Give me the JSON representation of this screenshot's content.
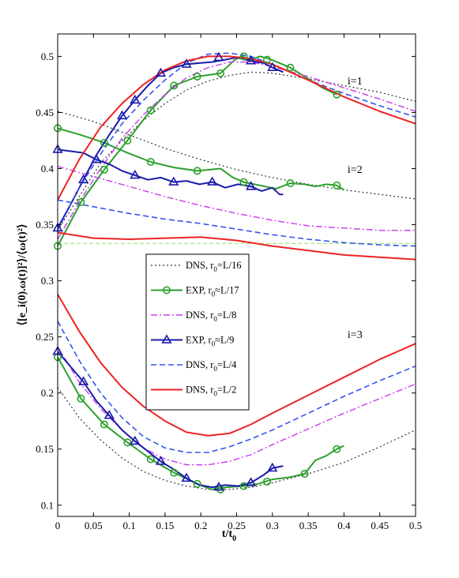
{
  "chart_data": {
    "type": "line",
    "title": "",
    "xlabel": "t/t_0",
    "xlabel_main": "t/t",
    "xlabel_sub": "0",
    "ylabel": "⟨[e_i(0).ω(t)]²⟩/⟨ω(t)²⟩",
    "xlim": [
      0,
      0.5
    ],
    "ylim": [
      0.09,
      0.52
    ],
    "x_ticks": [
      0,
      0.05,
      0.1,
      0.15,
      0.2,
      0.25,
      0.3,
      0.35,
      0.4,
      0.45,
      0.5
    ],
    "x_tick_labels": [
      "0",
      "0.05",
      "0.1",
      "0.15",
      "0.2",
      "0.25",
      "0.3",
      "0.35",
      "0.4",
      "0.45",
      "0.5"
    ],
    "y_ticks": [
      0.1,
      0.15,
      0.2,
      0.25,
      0.3,
      0.35,
      0.4,
      0.45,
      0.5
    ],
    "y_tick_labels": [
      "0.1",
      "0.15",
      "0.2",
      "0.25",
      "0.3",
      "0.35",
      "0.4",
      "0.45",
      "0.5"
    ],
    "grid": false,
    "legend_position": "center-left",
    "reference_line": {
      "y": 0.3333,
      "color": "#99dd66"
    },
    "annotations": [
      {
        "text": "i=1",
        "x": 0.405,
        "y": 0.475
      },
      {
        "text": "i=2",
        "x": 0.405,
        "y": 0.396
      },
      {
        "text": "i=3",
        "x": 0.405,
        "y": 0.249
      }
    ],
    "legend": [
      {
        "label_pre": "DNS, r",
        "label_sub": "0",
        "label_post": "=L/16",
        "color": "#333333",
        "dash": "2,3",
        "width": 1.2,
        "marker": "none"
      },
      {
        "label_pre": "EXP, r",
        "label_sub": "0",
        "label_post": "≈L/17",
        "color": "#2ca02c",
        "dash": "",
        "width": 2,
        "marker": "circle"
      },
      {
        "label_pre": "DNS, r",
        "label_sub": "0",
        "label_post": "=L/8",
        "color": "#cc44ee",
        "dash": "8,3,2,3",
        "width": 1.5,
        "marker": "none"
      },
      {
        "label_pre": "EXP, r",
        "label_sub": "0",
        "label_post": "≈L/9",
        "color": "#1a1aaa",
        "dash": "",
        "width": 2,
        "marker": "triangle"
      },
      {
        "label_pre": "DNS, r",
        "label_sub": "0",
        "label_post": "=L/4",
        "color": "#3355ee",
        "dash": "7,4",
        "width": 1.6,
        "marker": "none"
      },
      {
        "label_pre": "DNS, r",
        "label_sub": "0",
        "label_post": "=L/2",
        "color": "#ee2222",
        "dash": "",
        "width": 2,
        "marker": "none"
      }
    ],
    "series": [
      {
        "name": "DNS, r0=L/16",
        "component": "i=1",
        "color": "#333333",
        "dash": "2,3",
        "width": 1.2,
        "marker": "none",
        "x": [
          0,
          0.03,
          0.06,
          0.09,
          0.12,
          0.15,
          0.18,
          0.21,
          0.24,
          0.27,
          0.3,
          0.35,
          0.4,
          0.45,
          0.5
        ],
        "y": [
          0.345,
          0.375,
          0.405,
          0.425,
          0.443,
          0.458,
          0.47,
          0.478,
          0.483,
          0.486,
          0.485,
          0.48,
          0.474,
          0.468,
          0.46
        ]
      },
      {
        "name": "DNS, r0=L/16",
        "component": "i=2",
        "color": "#333333",
        "dash": "2,3",
        "width": 1.2,
        "marker": "none",
        "x": [
          0,
          0.05,
          0.1,
          0.15,
          0.2,
          0.25,
          0.3,
          0.35,
          0.4,
          0.45,
          0.5
        ],
        "y": [
          0.451,
          0.442,
          0.43,
          0.418,
          0.408,
          0.399,
          0.392,
          0.386,
          0.381,
          0.377,
          0.373
        ]
      },
      {
        "name": "DNS, r0=L/16",
        "component": "i=3",
        "color": "#333333",
        "dash": "2,3",
        "width": 1.2,
        "marker": "none",
        "x": [
          0,
          0.03,
          0.06,
          0.09,
          0.12,
          0.15,
          0.18,
          0.21,
          0.24,
          0.27,
          0.3,
          0.35,
          0.4,
          0.45,
          0.5
        ],
        "y": [
          0.205,
          0.178,
          0.158,
          0.142,
          0.13,
          0.122,
          0.117,
          0.114,
          0.114,
          0.116,
          0.12,
          0.128,
          0.138,
          0.152,
          0.167
        ]
      },
      {
        "name": "EXP, r0≈L/17",
        "component": "i=1",
        "color": "#2ca02c",
        "dash": "",
        "width": 2,
        "marker": "circle",
        "x": [
          0,
          0.0325,
          0.065,
          0.0975,
          0.13,
          0.1625,
          0.195,
          0.2275,
          0.2475,
          0.2575,
          0.27,
          0.2825,
          0.295,
          0.31,
          0.325,
          0.35,
          0.37,
          0.39
        ],
        "y": [
          0.331,
          0.37,
          0.399,
          0.425,
          0.452,
          0.474,
          0.482,
          0.485,
          0.497,
          0.5,
          0.497,
          0.5,
          0.498,
          0.494,
          0.49,
          0.48,
          0.472,
          0.466
        ],
        "marker_x": [
          0,
          0.0325,
          0.065,
          0.0975,
          0.13,
          0.1625,
          0.195,
          0.2275,
          0.26,
          0.2925,
          0.325,
          0.39
        ],
        "marker_y": [
          0.331,
          0.37,
          0.399,
          0.425,
          0.452,
          0.474,
          0.482,
          0.485,
          0.5,
          0.497,
          0.49,
          0.466
        ]
      },
      {
        "name": "EXP, r0≈L/17",
        "component": "i=2",
        "color": "#2ca02c",
        "dash": "",
        "width": 2,
        "marker": "circle",
        "x": [
          0,
          0.0325,
          0.065,
          0.0975,
          0.13,
          0.1625,
          0.195,
          0.2275,
          0.245,
          0.26,
          0.275,
          0.29,
          0.305,
          0.325,
          0.345,
          0.36,
          0.375,
          0.39,
          0.4
        ],
        "y": [
          0.436,
          0.43,
          0.423,
          0.414,
          0.406,
          0.401,
          0.398,
          0.4,
          0.392,
          0.388,
          0.386,
          0.384,
          0.382,
          0.387,
          0.386,
          0.384,
          0.386,
          0.385,
          0.381
        ],
        "marker_x": [
          0,
          0.065,
          0.13,
          0.195,
          0.26,
          0.325,
          0.39
        ],
        "marker_y": [
          0.436,
          0.423,
          0.406,
          0.398,
          0.388,
          0.387,
          0.385
        ]
      },
      {
        "name": "EXP, r0≈L/17",
        "component": "i=3",
        "color": "#2ca02c",
        "dash": "",
        "width": 2,
        "marker": "circle",
        "x": [
          0,
          0.0325,
          0.065,
          0.0975,
          0.13,
          0.1625,
          0.195,
          0.215,
          0.235,
          0.26,
          0.28,
          0.3,
          0.325,
          0.345,
          0.36,
          0.375,
          0.39,
          0.4
        ],
        "y": [
          0.232,
          0.195,
          0.172,
          0.156,
          0.141,
          0.129,
          0.119,
          0.114,
          0.116,
          0.117,
          0.119,
          0.123,
          0.125,
          0.128,
          0.14,
          0.144,
          0.15,
          0.153
        ],
        "marker_x": [
          0,
          0.0325,
          0.065,
          0.0975,
          0.13,
          0.1625,
          0.195,
          0.2275,
          0.26,
          0.2925,
          0.345,
          0.39
        ],
        "marker_y": [
          0.232,
          0.195,
          0.172,
          0.156,
          0.141,
          0.129,
          0.119,
          0.114,
          0.117,
          0.121,
          0.128,
          0.15
        ]
      },
      {
        "name": "DNS, r0=L/8",
        "component": "i=1",
        "color": "#cc44ee",
        "dash": "8,3,2,3",
        "width": 1.5,
        "marker": "none",
        "x": [
          0,
          0.03,
          0.06,
          0.09,
          0.12,
          0.15,
          0.18,
          0.21,
          0.24,
          0.27,
          0.3,
          0.35,
          0.4,
          0.45,
          0.5
        ],
        "y": [
          0.337,
          0.37,
          0.4,
          0.427,
          0.448,
          0.466,
          0.481,
          0.49,
          0.495,
          0.495,
          0.491,
          0.482,
          0.472,
          0.462,
          0.451
        ]
      },
      {
        "name": "DNS, r0=L/8",
        "component": "i=2",
        "color": "#cc44ee",
        "dash": "8,3,2,3",
        "width": 1.5,
        "marker": "none",
        "x": [
          0,
          0.05,
          0.1,
          0.15,
          0.2,
          0.25,
          0.3,
          0.35,
          0.4,
          0.45,
          0.5
        ],
        "y": [
          0.402,
          0.393,
          0.384,
          0.375,
          0.367,
          0.36,
          0.354,
          0.349,
          0.347,
          0.345,
          0.345
        ]
      },
      {
        "name": "DNS, r0=L/8",
        "component": "i=3",
        "color": "#cc44ee",
        "dash": "8,3,2,3",
        "width": 1.5,
        "marker": "none",
        "x": [
          0,
          0.03,
          0.06,
          0.09,
          0.12,
          0.15,
          0.18,
          0.21,
          0.24,
          0.27,
          0.3,
          0.35,
          0.4,
          0.45,
          0.5
        ],
        "y": [
          0.241,
          0.21,
          0.186,
          0.167,
          0.151,
          0.141,
          0.136,
          0.136,
          0.139,
          0.145,
          0.154,
          0.168,
          0.182,
          0.195,
          0.208
        ]
      },
      {
        "name": "EXP, r0≈L/9",
        "component": "i=1",
        "color": "#1a1aaa",
        "dash": "",
        "width": 2,
        "marker": "triangle",
        "x": [
          0,
          0.018,
          0.036,
          0.054,
          0.072,
          0.09,
          0.108,
          0.126,
          0.144,
          0.162,
          0.18,
          0.198,
          0.216,
          0.234,
          0.25,
          0.27,
          0.288,
          0.3,
          0.315
        ],
        "y": [
          0.347,
          0.368,
          0.39,
          0.412,
          0.43,
          0.447,
          0.461,
          0.474,
          0.485,
          0.49,
          0.493,
          0.494,
          0.495,
          0.497,
          0.499,
          0.496,
          0.494,
          0.49,
          0.486
        ],
        "marker_x": [
          0,
          0.036,
          0.09,
          0.108,
          0.144,
          0.18,
          0.225,
          0.27,
          0.3
        ],
        "marker_y": [
          0.347,
          0.39,
          0.447,
          0.461,
          0.485,
          0.493,
          0.499,
          0.496,
          0.49
        ]
      },
      {
        "name": "EXP, r0≈L/9",
        "component": "i=2",
        "color": "#1a1aaa",
        "dash": "",
        "width": 2,
        "marker": "triangle",
        "x": [
          0,
          0.036,
          0.054,
          0.072,
          0.09,
          0.108,
          0.126,
          0.144,
          0.162,
          0.18,
          0.198,
          0.216,
          0.234,
          0.252,
          0.27,
          0.285,
          0.3,
          0.31,
          0.315
        ],
        "y": [
          0.417,
          0.414,
          0.408,
          0.404,
          0.398,
          0.394,
          0.39,
          0.392,
          0.388,
          0.389,
          0.386,
          0.388,
          0.383,
          0.386,
          0.384,
          0.38,
          0.383,
          0.377,
          0.377
        ],
        "marker_x": [
          0,
          0.054,
          0.108,
          0.162,
          0.216,
          0.27
        ],
        "marker_y": [
          0.417,
          0.408,
          0.394,
          0.388,
          0.388,
          0.384
        ]
      },
      {
        "name": "EXP, r0≈L/9",
        "component": "i=3",
        "color": "#1a1aaa",
        "dash": "",
        "width": 2,
        "marker": "triangle",
        "x": [
          0,
          0.036,
          0.054,
          0.072,
          0.09,
          0.108,
          0.126,
          0.144,
          0.162,
          0.18,
          0.198,
          0.216,
          0.234,
          0.252,
          0.27,
          0.288,
          0.3,
          0.315
        ],
        "y": [
          0.237,
          0.21,
          0.193,
          0.18,
          0.167,
          0.157,
          0.148,
          0.139,
          0.132,
          0.124,
          0.118,
          0.116,
          0.118,
          0.117,
          0.12,
          0.127,
          0.133,
          0.135
        ],
        "marker_x": [
          0,
          0.036,
          0.072,
          0.108,
          0.144,
          0.18,
          0.225,
          0.27,
          0.3
        ],
        "marker_y": [
          0.237,
          0.21,
          0.18,
          0.157,
          0.139,
          0.124,
          0.116,
          0.12,
          0.133
        ]
      },
      {
        "name": "DNS, r0=L/4",
        "component": "i=1",
        "color": "#3355ee",
        "dash": "7,4",
        "width": 1.6,
        "marker": "none",
        "x": [
          0,
          0.03,
          0.06,
          0.09,
          0.12,
          0.15,
          0.18,
          0.21,
          0.24,
          0.27,
          0.3,
          0.35,
          0.4,
          0.45,
          0.5
        ],
        "y": [
          0.345,
          0.383,
          0.413,
          0.44,
          0.461,
          0.479,
          0.494,
          0.502,
          0.503,
          0.5,
          0.493,
          0.479,
          0.467,
          0.456,
          0.446
        ]
      },
      {
        "name": "DNS, r0=L/4",
        "component": "i=2",
        "color": "#3355ee",
        "dash": "7,4",
        "width": 1.6,
        "marker": "none",
        "x": [
          0,
          0.05,
          0.1,
          0.15,
          0.2,
          0.25,
          0.3,
          0.35,
          0.4,
          0.45,
          0.5
        ],
        "y": [
          0.372,
          0.366,
          0.36,
          0.355,
          0.351,
          0.346,
          0.341,
          0.337,
          0.334,
          0.332,
          0.331
        ]
      },
      {
        "name": "DNS, r0=L/4",
        "component": "i=3",
        "color": "#3355ee",
        "dash": "7,4",
        "width": 1.6,
        "marker": "none",
        "x": [
          0,
          0.03,
          0.06,
          0.09,
          0.12,
          0.15,
          0.18,
          0.21,
          0.24,
          0.27,
          0.3,
          0.35,
          0.4,
          0.45,
          0.5
        ],
        "y": [
          0.264,
          0.229,
          0.2,
          0.178,
          0.161,
          0.151,
          0.147,
          0.147,
          0.152,
          0.159,
          0.167,
          0.182,
          0.197,
          0.211,
          0.224
        ]
      },
      {
        "name": "DNS, r0=L/2",
        "component": "i=1",
        "color": "#ee2222",
        "dash": "",
        "width": 2,
        "marker": "none",
        "x": [
          0,
          0.03,
          0.06,
          0.09,
          0.12,
          0.15,
          0.18,
          0.21,
          0.24,
          0.27,
          0.3,
          0.35,
          0.4,
          0.45,
          0.5
        ],
        "y": [
          0.372,
          0.408,
          0.437,
          0.458,
          0.475,
          0.488,
          0.496,
          0.5,
          0.5,
          0.498,
          0.493,
          0.479,
          0.464,
          0.451,
          0.44
        ]
      },
      {
        "name": "DNS, r0=L/2",
        "component": "i=2",
        "color": "#ee2222",
        "dash": "",
        "width": 2,
        "marker": "none",
        "x": [
          0,
          0.05,
          0.1,
          0.15,
          0.2,
          0.25,
          0.3,
          0.35,
          0.4,
          0.45,
          0.5
        ],
        "y": [
          0.343,
          0.338,
          0.337,
          0.338,
          0.339,
          0.336,
          0.331,
          0.327,
          0.323,
          0.321,
          0.319
        ]
      },
      {
        "name": "DNS, r0=L/2",
        "component": "i=3",
        "color": "#ee2222",
        "dash": "",
        "width": 2,
        "marker": "none",
        "x": [
          0,
          0.03,
          0.06,
          0.09,
          0.12,
          0.15,
          0.18,
          0.21,
          0.24,
          0.27,
          0.3,
          0.35,
          0.4,
          0.45,
          0.5
        ],
        "y": [
          0.288,
          0.255,
          0.227,
          0.205,
          0.188,
          0.175,
          0.165,
          0.162,
          0.164,
          0.172,
          0.182,
          0.198,
          0.214,
          0.23,
          0.244
        ]
      }
    ]
  }
}
